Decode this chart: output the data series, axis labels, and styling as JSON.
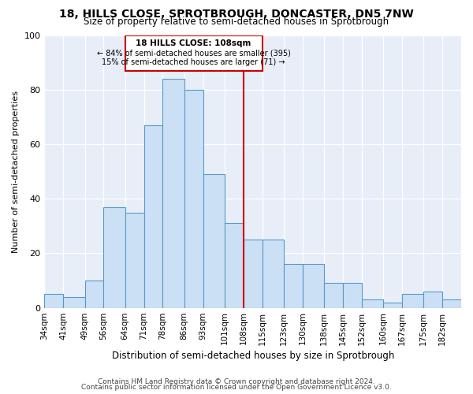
{
  "title": "18, HILLS CLOSE, SPROTBROUGH, DONCASTER, DN5 7NW",
  "subtitle": "Size of property relative to semi-detached houses in Sprotbrough",
  "xlabel": "Distribution of semi-detached houses by size in Sprotbrough",
  "ylabel": "Number of semi-detached properties",
  "footer1": "Contains HM Land Registry data © Crown copyright and database right 2024.",
  "footer2": "Contains public sector information licensed under the Open Government Licence v3.0.",
  "bin_labels": [
    "34sqm",
    "41sqm",
    "49sqm",
    "56sqm",
    "64sqm",
    "71sqm",
    "78sqm",
    "86sqm",
    "93sqm",
    "101sqm",
    "108sqm",
    "115sqm",
    "123sqm",
    "130sqm",
    "138sqm",
    "145sqm",
    "152sqm",
    "160sqm",
    "167sqm",
    "175sqm",
    "182sqm"
  ],
  "bar_heights": [
    5,
    4,
    10,
    37,
    35,
    67,
    84,
    80,
    49,
    31,
    25,
    25,
    16,
    16,
    9,
    9,
    3,
    2,
    5,
    6,
    3
  ],
  "property_value": 108,
  "property_label": "18 HILLS CLOSE: 108sqm",
  "pct_smaller": 84,
  "pct_larger": 15,
  "n_smaller": 395,
  "n_larger": 71,
  "bar_color": "#cce0f5",
  "bar_edge_color": "#5599cc",
  "line_color": "#cc0000",
  "box_color": "#cc0000",
  "bg_color": "#e8eef8",
  "ylim": [
    0,
    100
  ],
  "bin_edges": [
    34,
    41,
    49,
    56,
    64,
    71,
    78,
    86,
    93,
    101,
    108,
    115,
    123,
    130,
    138,
    145,
    152,
    160,
    167,
    175,
    182,
    189
  ]
}
